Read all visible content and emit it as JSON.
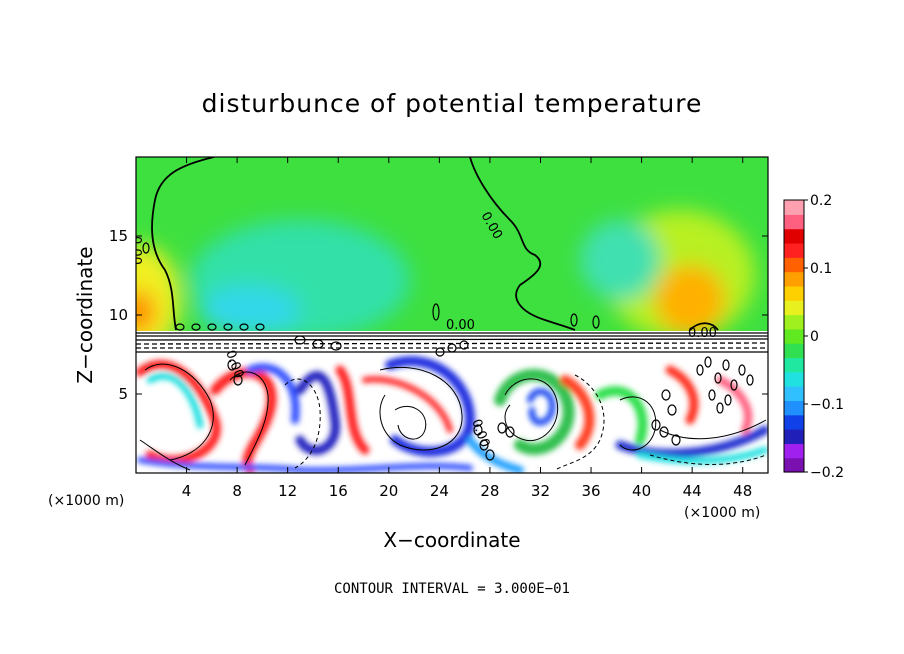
{
  "chart_data": {
    "type": "heatmap",
    "title": "disturbunce of potential temperature",
    "xlabel": "X−coordinate",
    "ylabel": "Z−coordinate",
    "x_unit_left": "(×1000 m)",
    "x_unit_right": "(×1000 m)",
    "footer": "CONTOUR INTERVAL = 3.000E−01",
    "xlim": [
      0,
      50
    ],
    "ylim": [
      0,
      20
    ],
    "xticks": [
      4,
      8,
      12,
      16,
      20,
      24,
      28,
      32,
      36,
      40,
      44,
      48
    ],
    "yticks": [
      5,
      10,
      15
    ],
    "xtick_labels": [
      "4",
      "8",
      "12",
      "16",
      "20",
      "24",
      "28",
      "32",
      "36",
      "40",
      "44",
      "48"
    ],
    "ytick_labels": [
      "5",
      "10",
      "15"
    ],
    "contour_labels": [
      "0.00",
      "0.00",
      "0.00",
      "0.00",
      "0.00",
      "0.00"
    ],
    "colorbar": {
      "min": -0.2,
      "max": 0.2,
      "ticks": [
        0.2,
        0.1,
        0,
        -0.1,
        -0.2
      ],
      "tick_labels": [
        "0.2",
        "0.1",
        "0",
        "−0.1",
        "−0.2"
      ],
      "colors": [
        "#7a10b0",
        "#a020f0",
        "#2020b8",
        "#1040e8",
        "#2090ff",
        "#30c0ff",
        "#20e0e0",
        "#20e8a0",
        "#30e050",
        "#60e820",
        "#a0f020",
        "#e8f020",
        "#ffd000",
        "#ffa000",
        "#ff6000",
        "#ff2020",
        "#e00000",
        "#ff6080",
        "#ffa0b0"
      ]
    }
  }
}
